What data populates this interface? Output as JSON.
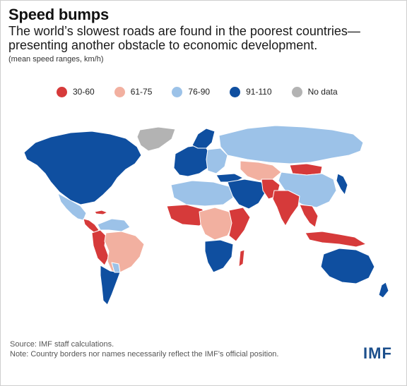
{
  "title": "Speed bumps",
  "subtitle": "The world’s slowest roads are found in the poorest countries—presenting another obstacle to economic development.",
  "units": "(mean speed ranges, km/h)",
  "legend": [
    {
      "label": "30-60",
      "color": "#d63a3a"
    },
    {
      "label": "61-75",
      "color": "#f2b0a0"
    },
    {
      "label": "76-90",
      "color": "#9cc2e8"
    },
    {
      "label": "91-110",
      "color": "#0f4fa0"
    },
    {
      "label": "No data",
      "color": "#b3b3b3"
    }
  ],
  "source": "Source: IMF staff calculations.",
  "note": "Note: Country borders nor names necessarily reflect the IMF’s official position.",
  "brand": "IMF"
}
